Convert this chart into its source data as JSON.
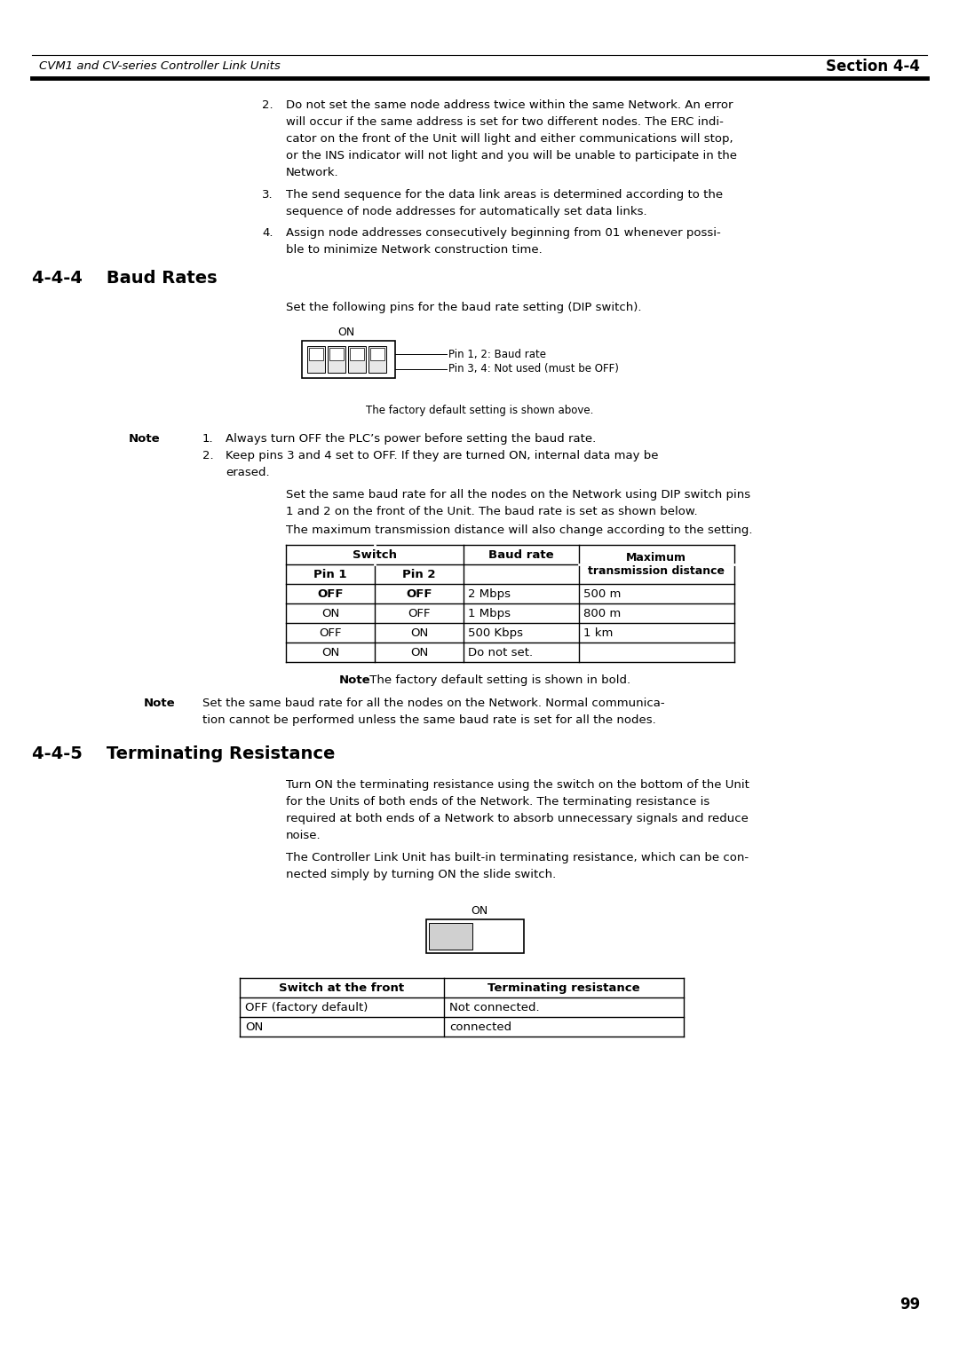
{
  "page_bg": "#ffffff",
  "header_left": "CVM1 and CV-series Controller Link Units",
  "header_right": "Section 4-4",
  "page_number": "99",
  "section_444_title": "4-4-4    Baud Rates",
  "section_445_title": "4-4-5    Terminating Resistance",
  "baud_intro": "Set the following pins for the baud rate setting (DIP switch).",
  "on_label_baud": "ON",
  "pin12_label": "Pin 1, 2: Baud rate",
  "pin34_label": "Pin 3, 4: Not used (must be OFF)",
  "factory_default_label": "The factory default setting is shown above.",
  "note1_label": "Note",
  "para2": "The maximum transmission distance will also change according to the setting.",
  "table1_rows": [
    [
      "OFF",
      "OFF",
      "2 Mbps",
      "500 m"
    ],
    [
      "ON",
      "OFF",
      "1 Mbps",
      "800 m"
    ],
    [
      "OFF",
      "ON",
      "500 Kbps",
      "1 km"
    ],
    [
      "ON",
      "ON",
      "Do not set.",
      ""
    ]
  ],
  "table1_bold_row": 0,
  "note2_bold": "Note",
  "note2_rest": " The factory default setting is shown in bold.",
  "note3_label": "Note",
  "table2_headers": [
    "Switch at the front",
    "Terminating resistance"
  ],
  "table2_rows": [
    [
      "OFF (factory default)",
      "Not connected."
    ],
    [
      "ON",
      "connected"
    ]
  ]
}
